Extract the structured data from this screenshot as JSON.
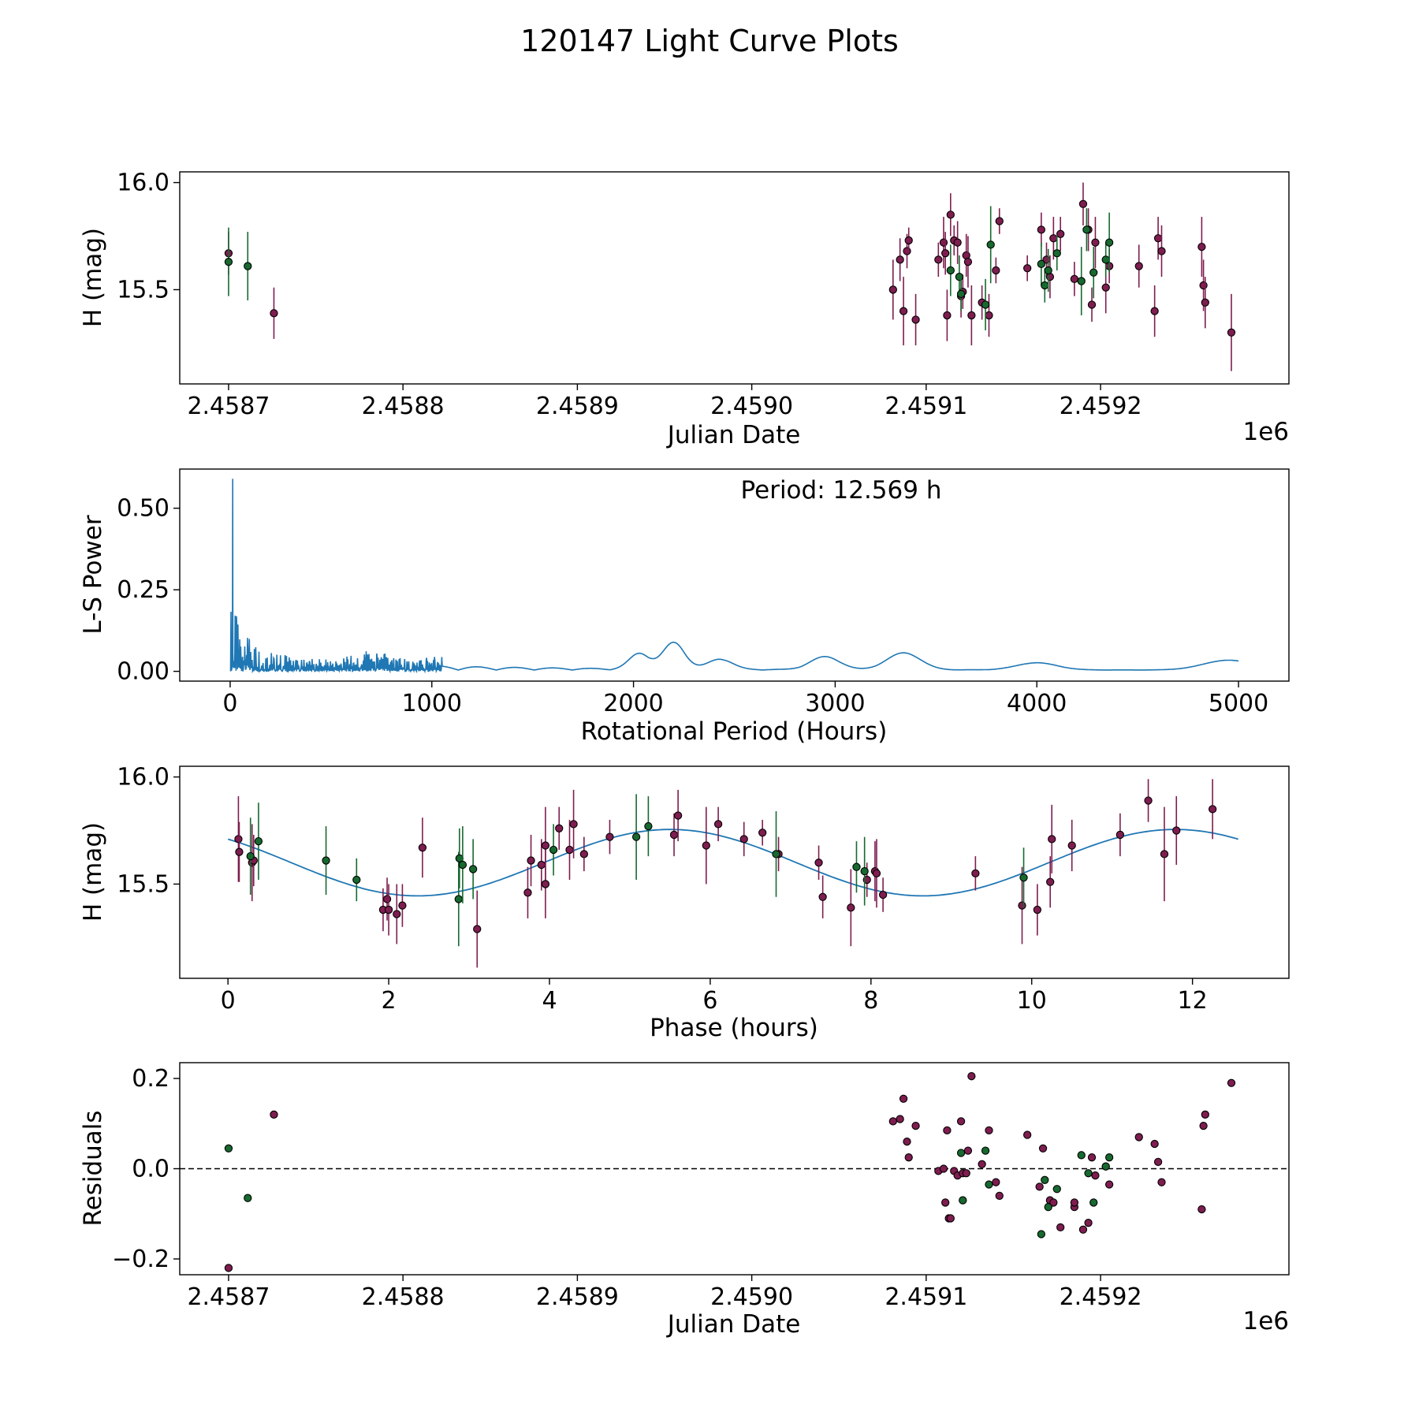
{
  "page_title": "120147 Light Curve Plots",
  "colors": {
    "filter_a": "#7e1d4f",
    "filter_b": "#17692f",
    "fit_line": "#1f77b4",
    "marker_edge": "#000000"
  },
  "chart_data": [
    {
      "id": "lightcurve",
      "type": "scatter",
      "xlabel": "Julian Date",
      "ylabel": "H (mag)",
      "offset_label": "1e6",
      "xlim": [
        2458672,
        2459308
      ],
      "ylim": [
        15.06,
        16.05
      ],
      "xticks": [
        2458700,
        2458800,
        2458900,
        2459000,
        2459100,
        2459200
      ],
      "xtick_labels": [
        "2.4587",
        "2.4588",
        "2.4589",
        "2.4590",
        "2.4591",
        "2.4592"
      ],
      "yticks": [
        15.5,
        16.0
      ],
      "ytick_labels": [
        "15.5",
        "16.0"
      ],
      "series": [
        {
          "name": "filter_a",
          "points": [
            [
              2458700,
              15.67,
              0.1
            ],
            [
              2458726,
              15.39,
              0.12
            ],
            [
              2459081,
              15.5,
              0.14
            ],
            [
              2459085,
              15.64,
              0.1
            ],
            [
              2459087,
              15.4,
              0.16
            ],
            [
              2459089,
              15.68,
              0.08
            ],
            [
              2459090,
              15.73,
              0.06
            ],
            [
              2459094,
              15.36,
              0.12
            ],
            [
              2459107,
              15.64,
              0.08
            ],
            [
              2459110,
              15.72,
              0.12
            ],
            [
              2459111,
              15.67,
              0.1
            ],
            [
              2459112,
              15.38,
              0.12
            ],
            [
              2459114,
              15.85,
              0.1
            ],
            [
              2459116,
              15.73,
              0.07
            ],
            [
              2459118,
              15.72,
              0.1
            ],
            [
              2459120,
              15.47,
              0.1
            ],
            [
              2459121,
              15.49,
              0.08
            ],
            [
              2459123,
              15.66,
              0.1
            ],
            [
              2459124,
              15.63,
              0.12
            ],
            [
              2459126,
              15.38,
              0.14
            ],
            [
              2459132,
              15.44,
              0.08
            ],
            [
              2459136,
              15.38,
              0.1
            ],
            [
              2459140,
              15.59,
              0.06
            ],
            [
              2459142,
              15.82,
              0.06
            ],
            [
              2459158,
              15.6,
              0.06
            ],
            [
              2459166,
              15.78,
              0.08
            ],
            [
              2459169,
              15.64,
              0.08
            ],
            [
              2459171,
              15.56,
              0.1
            ],
            [
              2459173,
              15.74,
              0.1
            ],
            [
              2459177,
              15.76,
              0.08
            ],
            [
              2459185,
              15.55,
              0.08
            ],
            [
              2459190,
              15.9,
              0.1
            ],
            [
              2459193,
              15.78,
              0.1
            ],
            [
              2459195,
              15.43,
              0.08
            ],
            [
              2459197,
              15.72,
              0.12
            ],
            [
              2459203,
              15.51,
              0.12
            ],
            [
              2459205,
              15.61,
              0.08
            ],
            [
              2459222,
              15.61,
              0.1
            ],
            [
              2459231,
              15.4,
              0.12
            ],
            [
              2459233,
              15.74,
              0.1
            ],
            [
              2459235,
              15.68,
              0.12
            ],
            [
              2459258,
              15.7,
              0.14
            ],
            [
              2459259,
              15.52,
              0.12
            ],
            [
              2459260,
              15.44,
              0.12
            ],
            [
              2459275,
              15.3,
              0.18
            ]
          ]
        },
        {
          "name": "filter_b",
          "points": [
            [
              2458700,
              15.63,
              0.16
            ],
            [
              2458711,
              15.61,
              0.16
            ],
            [
              2459114,
              15.59,
              0.12
            ],
            [
              2459119,
              15.56,
              0.1
            ],
            [
              2459120,
              15.48,
              0.08
            ],
            [
              2459134,
              15.43,
              0.12
            ],
            [
              2459137,
              15.71,
              0.18
            ],
            [
              2459166,
              15.62,
              0.1
            ],
            [
              2459168,
              15.52,
              0.08
            ],
            [
              2459170,
              15.59,
              0.1
            ],
            [
              2459175,
              15.67,
              0.08
            ],
            [
              2459189,
              15.54,
              0.16
            ],
            [
              2459192,
              15.78,
              0.1
            ],
            [
              2459196,
              15.58,
              0.12
            ],
            [
              2459203,
              15.64,
              0.08
            ],
            [
              2459205,
              15.72,
              0.14
            ]
          ]
        }
      ]
    },
    {
      "id": "periodogram",
      "type": "line",
      "xlabel": "Rotational Period (Hours)",
      "ylabel": "L-S Power",
      "annotation": "Period: 12.569 h",
      "xlim": [
        -250,
        5250
      ],
      "ylim": [
        -0.03,
        0.62
      ],
      "xticks": [
        0,
        1000,
        2000,
        3000,
        4000,
        5000
      ],
      "xtick_labels": [
        "0",
        "1000",
        "2000",
        "3000",
        "4000",
        "5000"
      ],
      "yticks": [
        0.0,
        0.25,
        0.5
      ],
      "ytick_labels": [
        "0.00",
        "0.25",
        "0.50"
      ],
      "x_range": [
        2,
        5000
      ],
      "peak": {
        "x": 12.569,
        "y": 0.59
      }
    },
    {
      "id": "phased",
      "type": "scatter",
      "xlabel": "Phase (hours)",
      "ylabel": "H (mag)",
      "xlim": [
        -0.6,
        13.2
      ],
      "ylim": [
        15.06,
        16.05
      ],
      "xticks": [
        0,
        2,
        4,
        6,
        8,
        10,
        12
      ],
      "xtick_labels": [
        "0",
        "2",
        "4",
        "6",
        "8",
        "10",
        "12"
      ],
      "yticks": [
        15.5,
        16.0
      ],
      "ytick_labels": [
        "15.5",
        "16.0"
      ],
      "fit": {
        "mean": 15.6,
        "amplitude": 0.155,
        "period": 12.569,
        "peak_phase": 5.5
      },
      "series": [
        {
          "name": "filter_a",
          "points": [
            [
              0.13,
              15.71,
              0.2
            ],
            [
              0.14,
              15.65,
              0.14
            ],
            [
              0.3,
              15.6,
              0.18
            ],
            [
              0.32,
              15.61,
              0.12
            ],
            [
              1.93,
              15.38,
              0.1
            ],
            [
              1.98,
              15.43,
              0.1
            ],
            [
              2.0,
              15.38,
              0.12
            ],
            [
              2.1,
              15.36,
              0.14
            ],
            [
              2.17,
              15.4,
              0.1
            ],
            [
              2.42,
              15.67,
              0.14
            ],
            [
              3.1,
              15.29,
              0.18
            ],
            [
              3.73,
              15.46,
              0.12
            ],
            [
              3.77,
              15.61,
              0.12
            ],
            [
              3.9,
              15.59,
              0.12
            ],
            [
              3.95,
              15.68,
              0.18
            ],
            [
              3.95,
              15.5,
              0.16
            ],
            [
              4.12,
              15.76,
              0.1
            ],
            [
              4.25,
              15.66,
              0.14
            ],
            [
              4.3,
              15.78,
              0.16
            ],
            [
              4.43,
              15.64,
              0.08
            ],
            [
              4.75,
              15.72,
              0.08
            ],
            [
              5.55,
              15.73,
              0.1
            ],
            [
              5.6,
              15.82,
              0.12
            ],
            [
              5.95,
              15.68,
              0.18
            ],
            [
              6.1,
              15.78,
              0.08
            ],
            [
              6.42,
              15.71,
              0.08
            ],
            [
              6.65,
              15.74,
              0.06
            ],
            [
              6.85,
              15.64,
              0.08
            ],
            [
              7.35,
              15.6,
              0.08
            ],
            [
              7.4,
              15.44,
              0.1
            ],
            [
              7.75,
              15.39,
              0.18
            ],
            [
              7.95,
              15.52,
              0.08
            ],
            [
              8.05,
              15.56,
              0.14
            ],
            [
              8.07,
              15.55,
              0.16
            ],
            [
              8.15,
              15.45,
              0.08
            ],
            [
              9.3,
              15.55,
              0.08
            ],
            [
              9.88,
              15.4,
              0.18
            ],
            [
              10.07,
              15.38,
              0.12
            ],
            [
              10.23,
              15.51,
              0.12
            ],
            [
              10.25,
              15.71,
              0.16
            ],
            [
              10.5,
              15.68,
              0.12
            ],
            [
              11.1,
              15.73,
              0.1
            ],
            [
              11.45,
              15.89,
              0.1
            ],
            [
              11.65,
              15.64,
              0.22
            ],
            [
              11.8,
              15.75,
              0.16
            ],
            [
              12.25,
              15.85,
              0.14
            ]
          ]
        },
        {
          "name": "filter_b",
          "points": [
            [
              0.28,
              15.63,
              0.18
            ],
            [
              0.38,
              15.7,
              0.18
            ],
            [
              1.22,
              15.61,
              0.16
            ],
            [
              1.6,
              15.52,
              0.1
            ],
            [
              2.87,
              15.43,
              0.22
            ],
            [
              2.88,
              15.62,
              0.14
            ],
            [
              2.92,
              15.59,
              0.18
            ],
            [
              3.05,
              15.57,
              0.14
            ],
            [
              4.05,
              15.66,
              0.12
            ],
            [
              5.08,
              15.72,
              0.2
            ],
            [
              5.23,
              15.77,
              0.14
            ],
            [
              6.82,
              15.64,
              0.2
            ],
            [
              7.92,
              15.56,
              0.16
            ],
            [
              7.82,
              15.58,
              0.12
            ],
            [
              9.9,
              15.53,
              0.14
            ]
          ]
        }
      ]
    },
    {
      "id": "residuals",
      "type": "scatter",
      "xlabel": "Julian Date",
      "ylabel": "Residuals",
      "offset_label": "1e6",
      "xlim": [
        2458672,
        2459308
      ],
      "ylim": [
        -0.235,
        0.235
      ],
      "xticks": [
        2458700,
        2458800,
        2458900,
        2459000,
        2459100,
        2459200
      ],
      "xtick_labels": [
        "2.4587",
        "2.4588",
        "2.4589",
        "2.4590",
        "2.4591",
        "2.4592"
      ],
      "yticks": [
        -0.2,
        0.0,
        0.2
      ],
      "ytick_labels": [
        "−0.2",
        "0.0",
        "0.2"
      ],
      "zero_line": 0,
      "series": [
        {
          "name": "filter_a",
          "points": [
            [
              2458700,
              -0.22
            ],
            [
              2458726,
              0.12
            ],
            [
              2459081,
              0.105
            ],
            [
              2459085,
              0.11
            ],
            [
              2459087,
              0.155
            ],
            [
              2459089,
              0.06
            ],
            [
              2459090,
              0.025
            ],
            [
              2459094,
              0.095
            ],
            [
              2459107,
              -0.005
            ],
            [
              2459110,
              0.0
            ],
            [
              2459111,
              -0.075
            ],
            [
              2459112,
              0.085
            ],
            [
              2459113,
              -0.11
            ],
            [
              2459114,
              -0.11
            ],
            [
              2459116,
              -0.005
            ],
            [
              2459118,
              -0.015
            ],
            [
              2459120,
              0.105
            ],
            [
              2459121,
              -0.01
            ],
            [
              2459123,
              -0.01
            ],
            [
              2459124,
              0.04
            ],
            [
              2459126,
              0.205
            ],
            [
              2459132,
              0.01
            ],
            [
              2459136,
              0.085
            ],
            [
              2459140,
              -0.03
            ],
            [
              2459142,
              -0.06
            ],
            [
              2459158,
              0.075
            ],
            [
              2459165,
              -0.04
            ],
            [
              2459167,
              0.045
            ],
            [
              2459171,
              -0.07
            ],
            [
              2459173,
              -0.075
            ],
            [
              2459177,
              -0.13
            ],
            [
              2459185,
              -0.085
            ],
            [
              2459185,
              -0.075
            ],
            [
              2459190,
              -0.135
            ],
            [
              2459193,
              -0.12
            ],
            [
              2459195,
              0.025
            ],
            [
              2459197,
              -0.015
            ],
            [
              2459203,
              0.005
            ],
            [
              2459205,
              -0.035
            ],
            [
              2459222,
              0.07
            ],
            [
              2459231,
              0.055
            ],
            [
              2459233,
              0.015
            ],
            [
              2459235,
              -0.03
            ],
            [
              2459258,
              -0.09
            ],
            [
              2459259,
              0.095
            ],
            [
              2459260,
              0.12
            ],
            [
              2459275,
              0.19
            ]
          ]
        },
        {
          "name": "filter_b",
          "points": [
            [
              2458700,
              0.045
            ],
            [
              2458711,
              -0.065
            ],
            [
              2459120,
              0.035
            ],
            [
              2459121,
              -0.07
            ],
            [
              2459134,
              0.04
            ],
            [
              2459136,
              -0.035
            ],
            [
              2459166,
              -0.145
            ],
            [
              2459168,
              -0.025
            ],
            [
              2459170,
              -0.085
            ],
            [
              2459175,
              -0.045
            ],
            [
              2459189,
              0.03
            ],
            [
              2459193,
              -0.01
            ],
            [
              2459196,
              -0.075
            ],
            [
              2459203,
              0.005
            ],
            [
              2459205,
              0.025
            ]
          ]
        }
      ]
    }
  ]
}
